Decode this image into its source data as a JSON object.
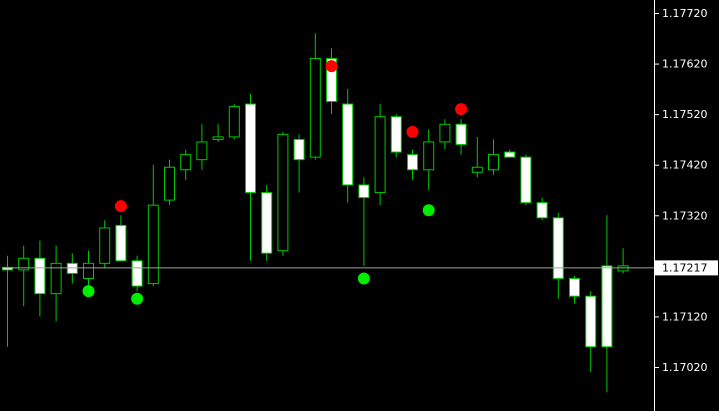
{
  "chart_data": {
    "type": "candlestick",
    "title": "",
    "xlabel": "",
    "ylabel": "",
    "ylim": [
      1.16945,
      1.1775
    ],
    "y_ticks": [
      "1.17720",
      "1.17620",
      "1.17520",
      "1.17420",
      "1.17320",
      "1.17120",
      "1.17020"
    ],
    "current_price": "1.17217",
    "current_price_value": 1.17217,
    "colors": {
      "background": "#000000",
      "wick": "#00c800",
      "bull_body": "#000000",
      "bear_body": "#ffffff",
      "current_line": "#a0a0a0",
      "axis": "#ffffff",
      "up_signal": "#ff0000",
      "down_signal": "#00ee00"
    },
    "candles": [
      {
        "o": 1.17217,
        "h": 1.1724,
        "l": 1.1706,
        "c": 1.17212
      },
      {
        "o": 1.17212,
        "h": 1.1726,
        "l": 1.1714,
        "c": 1.17235
      },
      {
        "o": 1.17235,
        "h": 1.1727,
        "l": 1.1712,
        "c": 1.17165
      },
      {
        "o": 1.17165,
        "h": 1.1726,
        "l": 1.1711,
        "c": 1.17225
      },
      {
        "o": 1.17225,
        "h": 1.17245,
        "l": 1.17185,
        "c": 1.17205
      },
      {
        "o": 1.17195,
        "h": 1.1725,
        "l": 1.1718,
        "c": 1.17225
      },
      {
        "o": 1.17225,
        "h": 1.1731,
        "l": 1.17215,
        "c": 1.17295
      },
      {
        "o": 1.173,
        "h": 1.1732,
        "l": 1.1723,
        "c": 1.1723
      },
      {
        "o": 1.1723,
        "h": 1.1724,
        "l": 1.1717,
        "c": 1.1718
      },
      {
        "o": 1.17185,
        "h": 1.1742,
        "l": 1.1718,
        "c": 1.1734
      },
      {
        "o": 1.1735,
        "h": 1.1743,
        "l": 1.1734,
        "c": 1.17415
      },
      {
        "o": 1.1741,
        "h": 1.1745,
        "l": 1.1739,
        "c": 1.1744
      },
      {
        "o": 1.1743,
        "h": 1.175,
        "l": 1.1741,
        "c": 1.17465
      },
      {
        "o": 1.1747,
        "h": 1.175,
        "l": 1.17465,
        "c": 1.17475
      },
      {
        "o": 1.17475,
        "h": 1.1754,
        "l": 1.1747,
        "c": 1.17535
      },
      {
        "o": 1.1754,
        "h": 1.1756,
        "l": 1.1723,
        "c": 1.17365
      },
      {
        "o": 1.17365,
        "h": 1.1738,
        "l": 1.1723,
        "c": 1.17245
      },
      {
        "o": 1.1725,
        "h": 1.17485,
        "l": 1.1724,
        "c": 1.1748
      },
      {
        "o": 1.1747,
        "h": 1.1748,
        "l": 1.17365,
        "c": 1.1743
      },
      {
        "o": 1.17435,
        "h": 1.1768,
        "l": 1.1743,
        "c": 1.1763
      },
      {
        "o": 1.1763,
        "h": 1.1765,
        "l": 1.1752,
        "c": 1.17545
      },
      {
        "o": 1.1754,
        "h": 1.1757,
        "l": 1.17345,
        "c": 1.1738
      },
      {
        "o": 1.1738,
        "h": 1.17395,
        "l": 1.1722,
        "c": 1.17355
      },
      {
        "o": 1.17365,
        "h": 1.1754,
        "l": 1.1734,
        "c": 1.17515
      },
      {
        "o": 1.17515,
        "h": 1.1752,
        "l": 1.17435,
        "c": 1.17445
      },
      {
        "o": 1.1744,
        "h": 1.1745,
        "l": 1.1739,
        "c": 1.1741
      },
      {
        "o": 1.1741,
        "h": 1.1749,
        "l": 1.1737,
        "c": 1.17465
      },
      {
        "o": 1.17465,
        "h": 1.1751,
        "l": 1.1745,
        "c": 1.175
      },
      {
        "o": 1.175,
        "h": 1.1751,
        "l": 1.1744,
        "c": 1.1746
      },
      {
        "o": 1.17405,
        "h": 1.17475,
        "l": 1.17395,
        "c": 1.17415
      },
      {
        "o": 1.1741,
        "h": 1.1747,
        "l": 1.174,
        "c": 1.1744
      },
      {
        "o": 1.17445,
        "h": 1.1745,
        "l": 1.17435,
        "c": 1.17435
      },
      {
        "o": 1.17435,
        "h": 1.1744,
        "l": 1.1734,
        "c": 1.17345
      },
      {
        "o": 1.17345,
        "h": 1.17355,
        "l": 1.1731,
        "c": 1.17315
      },
      {
        "o": 1.17315,
        "h": 1.17325,
        "l": 1.17155,
        "c": 1.17195
      },
      {
        "o": 1.17195,
        "h": 1.172,
        "l": 1.17145,
        "c": 1.1716
      },
      {
        "o": 1.1716,
        "h": 1.1717,
        "l": 1.1701,
        "c": 1.1706
      },
      {
        "o": 1.1722,
        "h": 1.1732,
        "l": 1.1697,
        "c": 1.1706
      },
      {
        "o": 1.1721,
        "h": 1.17255,
        "l": 1.17205,
        "c": 1.1722
      }
    ],
    "signals": [
      {
        "index": 5,
        "type": "down",
        "price": 1.1717
      },
      {
        "index": 7,
        "type": "up",
        "price": 1.17338
      },
      {
        "index": 8,
        "type": "down",
        "price": 1.17155
      },
      {
        "index": 20,
        "type": "up",
        "price": 1.17615
      },
      {
        "index": 22,
        "type": "down",
        "price": 1.17195
      },
      {
        "index": 25,
        "type": "up",
        "price": 1.17485
      },
      {
        "index": 26,
        "type": "down",
        "price": 1.1733
      },
      {
        "index": 28,
        "type": "up",
        "price": 1.1753
      }
    ]
  }
}
